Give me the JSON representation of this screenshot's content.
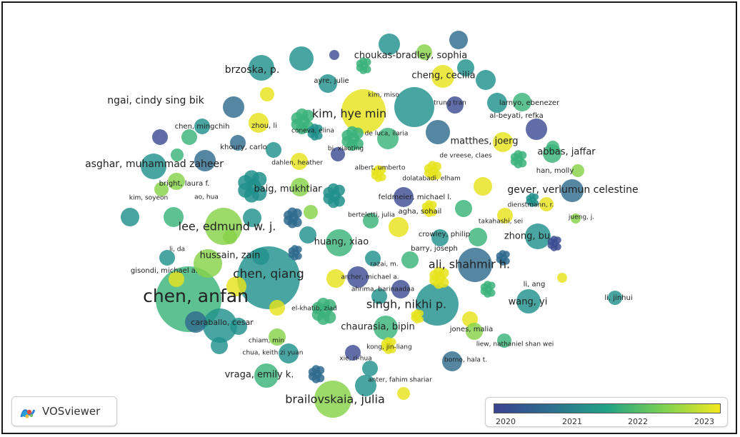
{
  "app": {
    "name": "VOSviewer"
  },
  "legend": {
    "ticks": [
      "2020",
      "2021",
      "2022",
      "2023"
    ],
    "colormap": [
      "#3b4290",
      "#2c6f8e",
      "#22a387",
      "#7cd151",
      "#f3e91f"
    ]
  },
  "map": {
    "labels": [
      "chen, anfan",
      "chen, qiang",
      "kim, hye min",
      "lee, edmund w. j.",
      "singh, nikhi p.",
      "ali, shahmir h.",
      "brailovskaia, julia",
      "asghar, muhammad zaheer",
      "gever, verlumun celestine",
      "ngai, cindy sing bik",
      "brzoska, p.",
      "choukas-bradley, sophia",
      "cheng, cecilia",
      "matthes, joerg",
      "abbas, jaffar",
      "zhong, bu",
      "baig, mukhtiar",
      "huang, xiao",
      "hussain, zain",
      "chaurasia, bipin",
      "wang, yi",
      "vraga, emily k.",
      "ayre, julie",
      "larnyo, ebenezer",
      "al-beyati, refka",
      "kim, miso",
      "trung tran",
      "chen, mingchih",
      "zhou, li",
      "coneva, elina",
      "de luca, ilaria",
      "khoury, carlo",
      "bi, xiaoting",
      "de vreese, claes",
      "dahlen, heather",
      "albert, umberto",
      "han, molly",
      "dolatabadi, elham",
      "bright, laura f.",
      "kim, soyeon",
      "ao, hua",
      "feldmeier, michael l.",
      "dienstmann, r.",
      "agha, sohail",
      "berteletti, julia",
      "takahashi, sei",
      "jueng, j.",
      "crowley, philip",
      "barry, joseph",
      "li, da",
      "razai, m.",
      "gisondi, michael a.",
      "archer, michael a.",
      "li, ang",
      "ahrima, barinaadaa",
      "li, jinhui",
      "el-khatib, ziad",
      "caraballo, cesar",
      "jones, malia",
      "chiam, min",
      "kong, jin-liang",
      "liew, nathaniel shan wei",
      "chua, keith zi yuan",
      "xie, ri-hua",
      "borno, hala t.",
      "anter, fahim shariar"
    ]
  }
}
